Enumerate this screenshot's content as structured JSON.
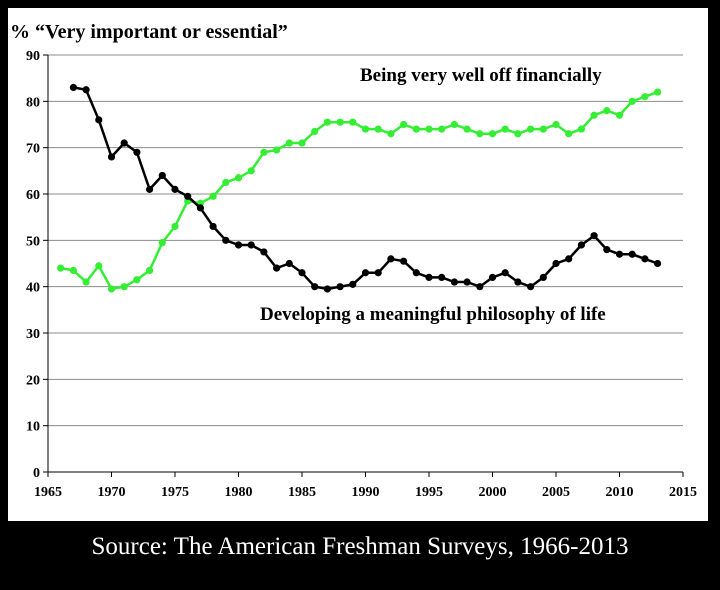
{
  "chart_data": {
    "type": "line",
    "ylabel": "% “Very important  or essential”",
    "xlim": [
      1965,
      2015
    ],
    "ylim": [
      0,
      90
    ],
    "x_ticks": [
      1965,
      1970,
      1975,
      1980,
      1985,
      1990,
      1995,
      2000,
      2005,
      2010,
      2015
    ],
    "y_ticks": [
      0,
      10,
      20,
      30,
      40,
      50,
      60,
      70,
      80,
      90
    ],
    "grid": "horizontal",
    "series": [
      {
        "name": "Being very well off financially",
        "color": "#33ee33",
        "points": [
          [
            1966,
            44
          ],
          [
            1967,
            43.5
          ],
          [
            1968,
            41
          ],
          [
            1969,
            44.5
          ],
          [
            1970,
            39.5
          ],
          [
            1971,
            40
          ],
          [
            1972,
            41.5
          ],
          [
            1973,
            43.5
          ],
          [
            1974,
            49.5
          ],
          [
            1975,
            53
          ],
          [
            1976,
            58.5
          ],
          [
            1977,
            58
          ],
          [
            1978,
            59.5
          ],
          [
            1979,
            62.5
          ],
          [
            1980,
            63.5
          ],
          [
            1981,
            65
          ],
          [
            1982,
            69
          ],
          [
            1983,
            69.5
          ],
          [
            1984,
            71
          ],
          [
            1985,
            71
          ],
          [
            1986,
            73.5
          ],
          [
            1987,
            75.5
          ],
          [
            1988,
            75.5
          ],
          [
            1989,
            75.5
          ],
          [
            1990,
            74
          ],
          [
            1991,
            74
          ],
          [
            1992,
            73
          ],
          [
            1993,
            75
          ],
          [
            1994,
            74
          ],
          [
            1995,
            74
          ],
          [
            1996,
            74
          ],
          [
            1997,
            75
          ],
          [
            1998,
            74
          ],
          [
            1999,
            73
          ],
          [
            2000,
            73
          ],
          [
            2001,
            74
          ],
          [
            2002,
            73
          ],
          [
            2003,
            74
          ],
          [
            2004,
            74
          ],
          [
            2005,
            75
          ],
          [
            2006,
            73
          ],
          [
            2007,
            74
          ],
          [
            2008,
            77
          ],
          [
            2009,
            78
          ],
          [
            2010,
            77
          ],
          [
            2011,
            80
          ],
          [
            2012,
            81
          ],
          [
            2013,
            82
          ]
        ]
      },
      {
        "name": "Developing a meaningful  philosophy  of life",
        "color": "#000000",
        "points": [
          [
            1967,
            83
          ],
          [
            1968,
            82.5
          ],
          [
            1969,
            76
          ],
          [
            1970,
            68
          ],
          [
            1971,
            71
          ],
          [
            1972,
            69
          ],
          [
            1973,
            61
          ],
          [
            1974,
            64
          ],
          [
            1975,
            61
          ],
          [
            1976,
            59.5
          ],
          [
            1977,
            57
          ],
          [
            1978,
            53
          ],
          [
            1979,
            50
          ],
          [
            1980,
            49
          ],
          [
            1981,
            49
          ],
          [
            1982,
            47.5
          ],
          [
            1983,
            44
          ],
          [
            1984,
            45
          ],
          [
            1985,
            43
          ],
          [
            1986,
            40
          ],
          [
            1987,
            39.5
          ],
          [
            1988,
            40
          ],
          [
            1989,
            40.5
          ],
          [
            1990,
            43
          ],
          [
            1991,
            43
          ],
          [
            1992,
            46
          ],
          [
            1993,
            45.5
          ],
          [
            1994,
            43
          ],
          [
            1995,
            42
          ],
          [
            1996,
            42
          ],
          [
            1997,
            41
          ],
          [
            1998,
            41
          ],
          [
            1999,
            40
          ],
          [
            2000,
            42
          ],
          [
            2001,
            43
          ],
          [
            2002,
            41
          ],
          [
            2003,
            40
          ],
          [
            2004,
            42
          ],
          [
            2005,
            45
          ],
          [
            2006,
            46
          ],
          [
            2007,
            49
          ],
          [
            2008,
            51
          ],
          [
            2009,
            48
          ],
          [
            2010,
            47
          ],
          [
            2011,
            47
          ],
          [
            2012,
            46
          ],
          [
            2013,
            45
          ]
        ]
      }
    ]
  },
  "source_caption": "Source: The American Freshman Surveys, 1966-2013"
}
